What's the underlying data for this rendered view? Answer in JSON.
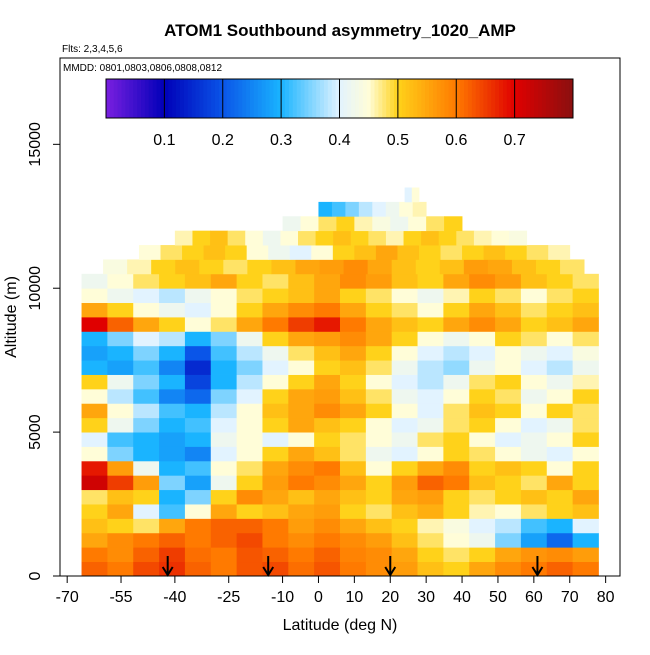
{
  "chart_data": {
    "type": "heatmap",
    "title": "ATOM1 Southbound asymmetry_1020_AMP",
    "flights_note": "Flts: 2,3,4,5,6",
    "dates_note": "MMDD: 0801,0803,0806,0808,0812",
    "xlabel": "Latitude (deg N)",
    "ylabel": "Altitude (m)",
    "xlim": [
      -72,
      84
    ],
    "ylim": [
      0,
      18000
    ],
    "x_ticks": [
      -70,
      -55,
      -40,
      -25,
      -10,
      0,
      10,
      20,
      30,
      40,
      50,
      60,
      70,
      80
    ],
    "x_tick_labels": [
      "-70",
      "-55",
      "-40",
      "-25",
      "-10",
      "0",
      "10",
      "20",
      "30",
      "40",
      "50",
      "60",
      "70",
      "80"
    ],
    "y_ticks": [
      0,
      5000,
      10000,
      15000
    ],
    "y_tick_labels": [
      "0",
      "5000",
      "10000",
      "15000"
    ],
    "colorbar": {
      "range": [
        0.0,
        0.8
      ],
      "ticks": [
        0.1,
        0.2,
        0.3,
        0.4,
        0.5,
        0.6,
        0.7
      ],
      "tick_labels": [
        "0.1",
        "0.2",
        "0.3",
        "0.4",
        "0.5",
        "0.6",
        "0.7"
      ],
      "stops": [
        {
          "v": 0.0,
          "color": "#7a1fe0"
        },
        {
          "v": 0.1,
          "color": "#0000b8"
        },
        {
          "v": 0.2,
          "color": "#0a55e8"
        },
        {
          "v": 0.3,
          "color": "#1ab4ff"
        },
        {
          "v": 0.4,
          "color": "#e2f3ff"
        },
        {
          "v": 0.45,
          "color": "#fffdd8"
        },
        {
          "v": 0.5,
          "color": "#ffd21a"
        },
        {
          "v": 0.6,
          "color": "#ff7a00"
        },
        {
          "v": 0.7,
          "color": "#e00000"
        },
        {
          "v": 0.8,
          "color": "#8a1010"
        }
      ]
    },
    "profile_markers": {
      "description_none": "",
      "latitudes": [
        -42,
        -14,
        20,
        61
      ]
    },
    "altitude_bins": [
      {
        "bottom": 0,
        "top": 500,
        "lat_start": -66,
        "lat_end": 78,
        "values": [
          0.62,
          0.6,
          0.64,
          0.66,
          0.62,
          0.6,
          0.63,
          0.64,
          0.61,
          0.63,
          0.6,
          0.58,
          0.56,
          0.52,
          0.5,
          0.55,
          0.58,
          0.6,
          0.62,
          0.6
        ]
      },
      {
        "bottom": 500,
        "top": 1000,
        "lat_start": -66,
        "lat_end": 78,
        "values": [
          0.6,
          0.58,
          0.62,
          0.65,
          0.61,
          0.6,
          0.63,
          0.62,
          0.6,
          0.62,
          0.59,
          0.58,
          0.55,
          0.5,
          0.48,
          0.5,
          0.55,
          0.57,
          0.58,
          0.56
        ]
      },
      {
        "bottom": 1000,
        "top": 1500,
        "lat_start": -66,
        "lat_end": 78,
        "values": [
          0.55,
          0.58,
          0.6,
          0.62,
          0.6,
          0.62,
          0.64,
          0.6,
          0.58,
          0.6,
          0.58,
          0.56,
          0.52,
          0.48,
          0.45,
          0.42,
          0.35,
          0.28,
          0.22,
          0.3
        ]
      },
      {
        "bottom": 1500,
        "top": 2000,
        "lat_start": -66,
        "lat_end": 78,
        "values": [
          0.52,
          0.5,
          0.48,
          0.55,
          0.6,
          0.62,
          0.62,
          0.6,
          0.56,
          0.58,
          0.55,
          0.52,
          0.5,
          0.46,
          0.44,
          0.4,
          0.38,
          0.32,
          0.3,
          0.4
        ]
      },
      {
        "bottom": 2000,
        "top": 2500,
        "lat_start": -66,
        "lat_end": 78,
        "values": [
          0.5,
          0.55,
          0.4,
          0.32,
          0.45,
          0.55,
          0.5,
          0.52,
          0.55,
          0.56,
          0.5,
          0.48,
          0.52,
          0.54,
          0.5,
          0.46,
          0.45,
          0.48,
          0.5,
          0.52
        ]
      },
      {
        "bottom": 2500,
        "top": 3000,
        "lat_start": -66,
        "lat_end": 78,
        "values": [
          0.48,
          0.52,
          0.5,
          0.3,
          0.35,
          0.5,
          0.58,
          0.55,
          0.52,
          0.55,
          0.52,
          0.5,
          0.55,
          0.56,
          0.5,
          0.48,
          0.5,
          0.52,
          0.5,
          0.55
        ]
      },
      {
        "bottom": 3000,
        "top": 3500,
        "lat_start": -66,
        "lat_end": 78,
        "values": [
          0.72,
          0.65,
          0.56,
          0.35,
          0.28,
          0.42,
          0.5,
          0.56,
          0.6,
          0.58,
          0.55,
          0.5,
          0.56,
          0.62,
          0.6,
          0.52,
          0.5,
          0.48,
          0.55,
          0.5
        ]
      },
      {
        "bottom": 3500,
        "top": 4000,
        "lat_start": -66,
        "lat_end": 78,
        "values": [
          0.68,
          0.56,
          0.42,
          0.3,
          0.32,
          0.45,
          0.48,
          0.55,
          0.58,
          0.6,
          0.52,
          0.45,
          0.5,
          0.55,
          0.58,
          0.5,
          0.52,
          0.5,
          0.45,
          0.5
        ]
      },
      {
        "bottom": 4000,
        "top": 4500,
        "lat_start": -66,
        "lat_end": 78,
        "values": [
          0.45,
          0.35,
          0.3,
          0.28,
          0.25,
          0.4,
          0.45,
          0.5,
          0.55,
          0.52,
          0.48,
          0.42,
          0.4,
          0.45,
          0.5,
          0.48,
          0.45,
          0.42,
          0.4,
          0.45
        ]
      },
      {
        "bottom": 4500,
        "top": 5000,
        "lat_start": -66,
        "lat_end": 78,
        "values": [
          0.4,
          0.32,
          0.3,
          0.28,
          0.3,
          0.42,
          0.45,
          0.4,
          0.45,
          0.5,
          0.48,
          0.45,
          0.42,
          0.48,
          0.5,
          0.45,
          0.4,
          0.42,
          0.45,
          0.5
        ]
      },
      {
        "bottom": 5000,
        "top": 5500,
        "lat_start": -66,
        "lat_end": 78,
        "values": [
          0.5,
          0.42,
          0.35,
          0.3,
          0.32,
          0.4,
          0.45,
          0.5,
          0.55,
          0.52,
          0.5,
          0.45,
          0.4,
          0.42,
          0.48,
          0.5,
          0.45,
          0.4,
          0.42,
          0.48
        ]
      },
      {
        "bottom": 5500,
        "top": 6000,
        "lat_start": -66,
        "lat_end": 78,
        "values": [
          0.55,
          0.45,
          0.38,
          0.32,
          0.3,
          0.38,
          0.45,
          0.52,
          0.55,
          0.58,
          0.55,
          0.5,
          0.45,
          0.4,
          0.48,
          0.52,
          0.5,
          0.45,
          0.5,
          0.48
        ]
      },
      {
        "bottom": 6000,
        "top": 6500,
        "lat_start": -66,
        "lat_end": 78,
        "values": [
          0.45,
          0.38,
          0.32,
          0.25,
          0.22,
          0.35,
          0.4,
          0.5,
          0.55,
          0.56,
          0.52,
          0.48,
          0.42,
          0.4,
          0.45,
          0.5,
          0.48,
          0.42,
          0.45,
          0.5
        ]
      },
      {
        "bottom": 6500,
        "top": 7000,
        "lat_start": -66,
        "lat_end": 78,
        "values": [
          0.5,
          0.42,
          0.35,
          0.3,
          0.18,
          0.3,
          0.38,
          0.45,
          0.5,
          0.55,
          0.5,
          0.45,
          0.4,
          0.38,
          0.42,
          0.48,
          0.5,
          0.45,
          0.42,
          0.46
        ]
      },
      {
        "bottom": 7000,
        "top": 7500,
        "lat_start": -66,
        "lat_end": 78,
        "values": [
          0.3,
          0.28,
          0.32,
          0.25,
          0.15,
          0.3,
          0.35,
          0.4,
          0.45,
          0.5,
          0.52,
          0.48,
          0.42,
          0.38,
          0.36,
          0.42,
          0.45,
          0.4,
          0.38,
          0.42
        ]
      },
      {
        "bottom": 7500,
        "top": 8000,
        "lat_start": -66,
        "lat_end": 78,
        "values": [
          0.28,
          0.3,
          0.35,
          0.3,
          0.2,
          0.32,
          0.38,
          0.42,
          0.48,
          0.52,
          0.55,
          0.5,
          0.45,
          0.4,
          0.38,
          0.4,
          0.45,
          0.42,
          0.4,
          0.44
        ]
      },
      {
        "bottom": 8000,
        "top": 8500,
        "lat_start": -66,
        "lat_end": 78,
        "values": [
          0.3,
          0.35,
          0.4,
          0.38,
          0.3,
          0.35,
          0.42,
          0.5,
          0.55,
          0.56,
          0.58,
          0.55,
          0.5,
          0.45,
          0.42,
          0.45,
          0.5,
          0.48,
          0.45,
          0.48
        ]
      },
      {
        "bottom": 8500,
        "top": 9000,
        "lat_start": -66,
        "lat_end": 78,
        "values": [
          0.7,
          0.62,
          0.55,
          0.5,
          0.45,
          0.48,
          0.55,
          0.6,
          0.65,
          0.68,
          0.6,
          0.55,
          0.52,
          0.5,
          0.55,
          0.58,
          0.55,
          0.5,
          0.52,
          0.55
        ]
      },
      {
        "bottom": 9000,
        "top": 9500,
        "lat_start": -66,
        "lat_end": 78,
        "values": [
          0.55,
          0.5,
          0.45,
          0.42,
          0.4,
          0.45,
          0.5,
          0.55,
          0.58,
          0.6,
          0.55,
          0.5,
          0.48,
          0.45,
          0.5,
          0.55,
          0.52,
          0.48,
          0.5,
          0.52
        ]
      },
      {
        "bottom": 9500,
        "top": 10000,
        "lat_start": -66,
        "lat_end": 78,
        "values": [
          0.45,
          0.42,
          0.4,
          0.38,
          0.42,
          0.45,
          0.48,
          0.5,
          0.52,
          0.55,
          0.5,
          0.48,
          0.45,
          0.42,
          0.46,
          0.5,
          0.48,
          0.45,
          0.48,
          0.5
        ]
      },
      {
        "bottom": 10000,
        "top": 10500,
        "lat_start": -66,
        "lat_end": 78,
        "values": [
          0.42,
          0.45,
          0.48,
          0.5,
          0.52,
          0.55,
          0.5,
          0.48,
          0.52,
          0.55,
          0.58,
          0.56,
          0.52,
          0.5,
          0.55,
          0.58,
          0.56,
          0.52,
          0.5,
          0.48
        ]
      },
      {
        "bottom": 10500,
        "top": 11000,
        "lat_start": -60,
        "lat_end": 74,
        "values": [
          0.44,
          0.46,
          0.5,
          0.52,
          0.5,
          0.48,
          0.5,
          0.52,
          0.55,
          0.56,
          0.58,
          0.55,
          0.52,
          0.5,
          0.52,
          0.56,
          0.55,
          0.52,
          0.5,
          0.48
        ]
      },
      {
        "bottom": 11000,
        "top": 11500,
        "lat_start": -50,
        "lat_end": 70,
        "values": [
          0.45,
          0.48,
          0.5,
          0.52,
          0.5,
          0.45,
          0.42,
          0.4,
          0.45,
          0.5,
          0.52,
          0.55,
          0.52,
          0.5,
          0.48,
          0.5,
          0.52,
          0.5,
          0.48,
          0.46
        ]
      },
      {
        "bottom": 11500,
        "top": 12000,
        "lat_start": -40,
        "lat_end": 58,
        "values": [
          0.46,
          0.5,
          0.52,
          0.48,
          0.45,
          0.42,
          0.45,
          0.48,
          0.5,
          0.52,
          0.5,
          0.48,
          0.46,
          0.5,
          0.52,
          0.5,
          0.48,
          0.46,
          0.45,
          0.44
        ]
      },
      {
        "bottom": 12000,
        "top": 12500,
        "lat_start": -10,
        "lat_end": 40,
        "values": [
          0.42,
          0.45,
          0.48,
          0.5,
          0.46,
          0.44,
          0.42,
          0.45,
          0.48,
          0.5
        ]
      },
      {
        "bottom": 12500,
        "top": 13000,
        "lat_start": 0,
        "lat_end": 30,
        "values": [
          0.3,
          0.32,
          0.35,
          0.38,
          0.4,
          0.42,
          0.45,
          0.46
        ]
      },
      {
        "bottom": 13000,
        "top": 13500,
        "lat_start": 24,
        "lat_end": 28,
        "values": [
          0.4,
          0.45
        ]
      }
    ]
  }
}
